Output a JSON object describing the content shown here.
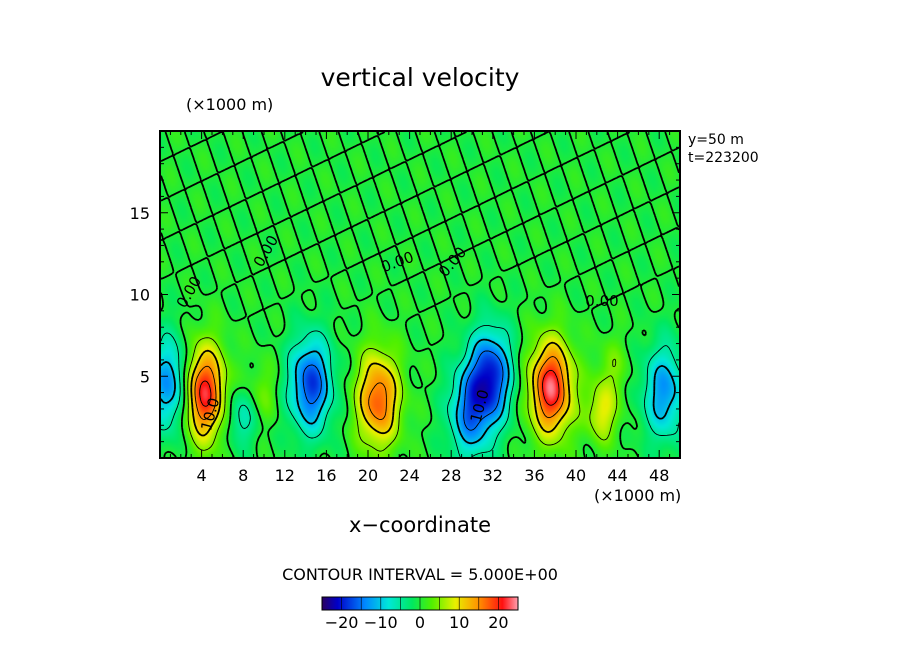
{
  "chart_data": {
    "type": "heatmap",
    "title": "vertical velocity",
    "xlabel": "x−coordinate",
    "x_unit": "(×1000 m)",
    "y_unit": "(×1000 m)",
    "x_ticks": [
      4,
      8,
      12,
      16,
      20,
      24,
      28,
      32,
      36,
      40,
      44,
      48
    ],
    "x_tick_labels": [
      "4",
      "8",
      "12",
      "16",
      "20",
      "24",
      "28",
      "32",
      "36",
      "40",
      "44",
      "48"
    ],
    "xlim": [
      0,
      50
    ],
    "y_ticks": [
      5,
      10,
      15
    ],
    "y_tick_labels": [
      "5",
      "10",
      "15"
    ],
    "ylim": [
      0,
      20
    ],
    "info_lines": [
      "y=50 m",
      "t=223200"
    ],
    "contour_interval_label": "CONTOUR INTERVAL = 5.000E+00",
    "contour_labels": [
      "0.00",
      "0.00",
      "0.00",
      "0.00",
      "0.00",
      "10.0",
      "10.0"
    ],
    "colorbar_ticks": [
      "−20",
      "−10",
      "0",
      "10",
      "20"
    ],
    "colorbar_range": [
      -25,
      25
    ],
    "features": [
      {
        "sign": "up",
        "x": 4.2,
        "y": 4.0,
        "peak": 22
      },
      {
        "sign": "down",
        "x": 1.0,
        "y": 4.5,
        "peak": -14
      },
      {
        "sign": "down",
        "x": 7.8,
        "y": 2.5,
        "peak": -7
      },
      {
        "sign": "up",
        "x": 9.8,
        "y": 4.0,
        "peak": 4
      },
      {
        "sign": "down",
        "x": 14.5,
        "y": 4.5,
        "peak": -18
      },
      {
        "sign": "up",
        "x": 21.0,
        "y": 3.6,
        "peak": 18
      },
      {
        "sign": "down",
        "x": 29.8,
        "y": 2.8,
        "peak": -14
      },
      {
        "sign": "down",
        "x": 31.8,
        "y": 5.0,
        "peak": -19
      },
      {
        "sign": "up",
        "x": 37.6,
        "y": 4.3,
        "peak": 23
      },
      {
        "sign": "up",
        "x": 42.5,
        "y": 2.8,
        "peak": 9
      },
      {
        "sign": "up",
        "x": 43.5,
        "y": 5.5,
        "peak": 4
      },
      {
        "sign": "down",
        "x": 48.5,
        "y": 4.0,
        "peak": -13
      }
    ],
    "grid": false
  }
}
